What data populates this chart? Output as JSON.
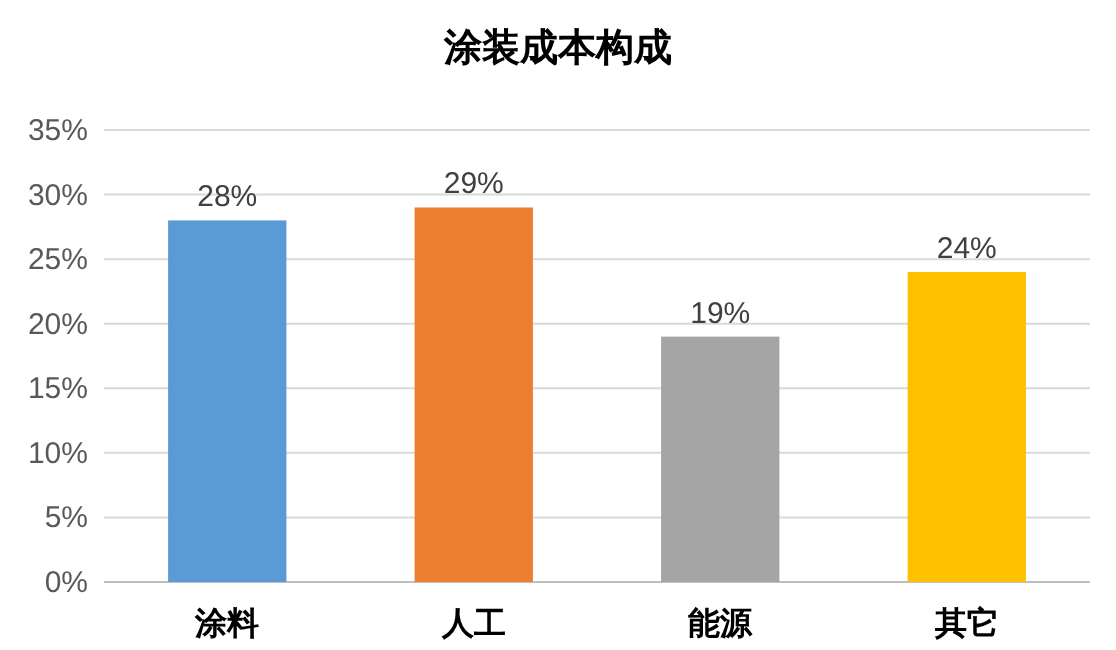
{
  "chart_data": {
    "type": "bar",
    "title": "涂装成本构成",
    "categories": [
      "涂料",
      "人工",
      "能源",
      "其它"
    ],
    "values": [
      28,
      29,
      19,
      24
    ],
    "colors": [
      "#5b9bd5",
      "#ed7d31",
      "#a5a5a5",
      "#ffc000"
    ],
    "value_labels": [
      "28%",
      "29%",
      "19%",
      "24%"
    ],
    "ylim": [
      0,
      35
    ],
    "yticks": [
      {
        "value": 0,
        "label": "0%"
      },
      {
        "value": 5,
        "label": "5%"
      },
      {
        "value": 10,
        "label": "10%"
      },
      {
        "value": 15,
        "label": "15%"
      },
      {
        "value": 20,
        "label": "20%"
      },
      {
        "value": 25,
        "label": "25%"
      },
      {
        "value": 30,
        "label": "30%"
      },
      {
        "value": 35,
        "label": "35%"
      }
    ],
    "grid": "y"
  }
}
